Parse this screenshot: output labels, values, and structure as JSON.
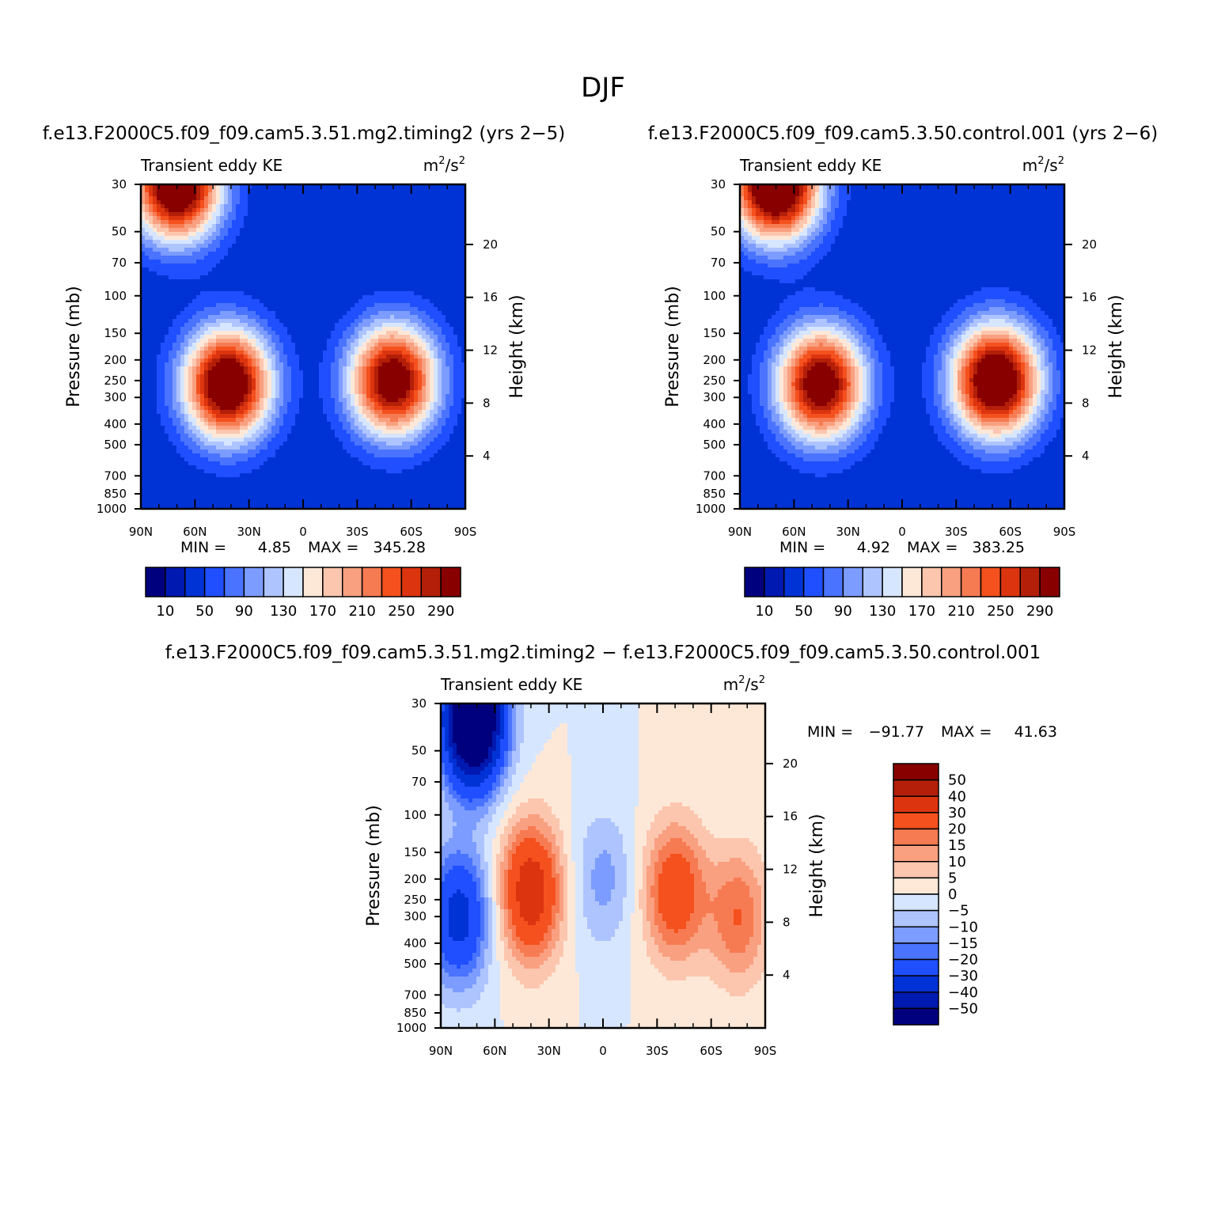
{
  "figure": {
    "title": "DJF"
  },
  "colors": {
    "ramp": [
      "#00007f",
      "#0019b0",
      "#0033d6",
      "#1f4fff",
      "#4a74ff",
      "#7c9cff",
      "#aec4ff",
      "#d7e6ff",
      "#fde8d8",
      "#fcc6ae",
      "#f9a080",
      "#f77b52",
      "#f4511e",
      "#dd3410",
      "#b31f08",
      "#880000"
    ]
  },
  "chart_data": [
    {
      "id": "top_left",
      "type": "heatmap",
      "title": "f.e13.F2000C5.f09_f09.cam5.3.51.mg2.timing2 (yrs 2−5)",
      "left_label": "Transient eddy KE",
      "right_label": "m²/s²",
      "units_base": "m",
      "units_mid": "/s",
      "units_sup": "2",
      "ylabel": "Pressure (mb)",
      "ylabel_right": "Height (km)",
      "x_ticks": [
        "90N",
        "60N",
        "30N",
        "0",
        "30S",
        "60S",
        "90S"
      ],
      "y_ticks": [
        "30",
        "50",
        "70",
        "100",
        "150",
        "200",
        "250",
        "300",
        "400",
        "500",
        "700",
        "850",
        "1000"
      ],
      "y_ticks_right": [
        "4",
        "8",
        "12",
        "16",
        "20"
      ],
      "min_label": "MIN =",
      "min_value": "4.85",
      "max_label": "MAX =",
      "max_value": "345.28",
      "colorbar_labels": [
        "10",
        "50",
        "90",
        "130",
        "170",
        "210",
        "250",
        "290"
      ],
      "blobs": [
        {
          "lat": 70,
          "p": 30,
          "value": 330
        },
        {
          "lat": 42,
          "p": 260,
          "value": 320
        },
        {
          "lat": -50,
          "p": 250,
          "value": 300
        }
      ]
    },
    {
      "id": "top_right",
      "type": "heatmap",
      "title": "f.e13.F2000C5.f09_f09.cam5.3.50.control.001 (yrs 2−6)",
      "left_label": "Transient eddy KE",
      "right_label": "m²/s²",
      "units_base": "m",
      "units_mid": "/s",
      "units_sup": "2",
      "ylabel": "Pressure (mb)",
      "ylabel_right": "Height (km)",
      "x_ticks": [
        "90N",
        "60N",
        "30N",
        "0",
        "30S",
        "60S",
        "90S"
      ],
      "y_ticks": [
        "30",
        "50",
        "70",
        "100",
        "150",
        "200",
        "250",
        "300",
        "400",
        "500",
        "700",
        "850",
        "1000"
      ],
      "y_ticks_right": [
        "4",
        "8",
        "12",
        "16",
        "20"
      ],
      "min_label": "MIN =",
      "min_value": "4.92",
      "max_label": "MAX =",
      "max_value": "383.25",
      "colorbar_labels": [
        "10",
        "50",
        "90",
        "130",
        "170",
        "210",
        "250",
        "290"
      ],
      "blobs": [
        {
          "lat": 70,
          "p": 30,
          "value": 350
        },
        {
          "lat": 45,
          "p": 260,
          "value": 300
        },
        {
          "lat": -52,
          "p": 250,
          "value": 330
        }
      ]
    },
    {
      "id": "bottom_diff",
      "type": "heatmap",
      "title": "f.e13.F2000C5.f09_f09.cam5.3.51.mg2.timing2 − f.e13.F2000C5.f09_f09.cam5.3.50.control.001",
      "left_label": "Transient eddy KE",
      "right_label": "m²/s²",
      "units_base": "m",
      "units_mid": "/s",
      "units_sup": "2",
      "ylabel": "Pressure (mb)",
      "ylabel_right": "Height (km)",
      "x_ticks": [
        "90N",
        "60N",
        "30N",
        "0",
        "30S",
        "60S",
        "90S"
      ],
      "y_ticks": [
        "30",
        "50",
        "70",
        "100",
        "150",
        "200",
        "250",
        "300",
        "400",
        "500",
        "700",
        "850",
        "1000"
      ],
      "y_ticks_right": [
        "4",
        "8",
        "12",
        "16",
        "20"
      ],
      "min_label": "MIN =",
      "min_value": "−91.77",
      "max_label": "MAX =",
      "max_value": "41.63",
      "colorbar_labels": [
        "50",
        "40",
        "30",
        "20",
        "15",
        "10",
        "5",
        "0",
        "−5",
        "−10",
        "−15",
        "−20",
        "−30",
        "−40",
        "−50"
      ],
      "blobs": [
        {
          "lat": 72,
          "p": 35,
          "value": -85
        },
        {
          "lat": 80,
          "p": 300,
          "value": -35
        },
        {
          "lat": 40,
          "p": 230,
          "value": 38
        },
        {
          "lat": -40,
          "p": 230,
          "value": 28
        },
        {
          "lat": -75,
          "p": 300,
          "value": 20
        },
        {
          "lat": 0,
          "p": 200,
          "value": -12
        }
      ]
    }
  ]
}
